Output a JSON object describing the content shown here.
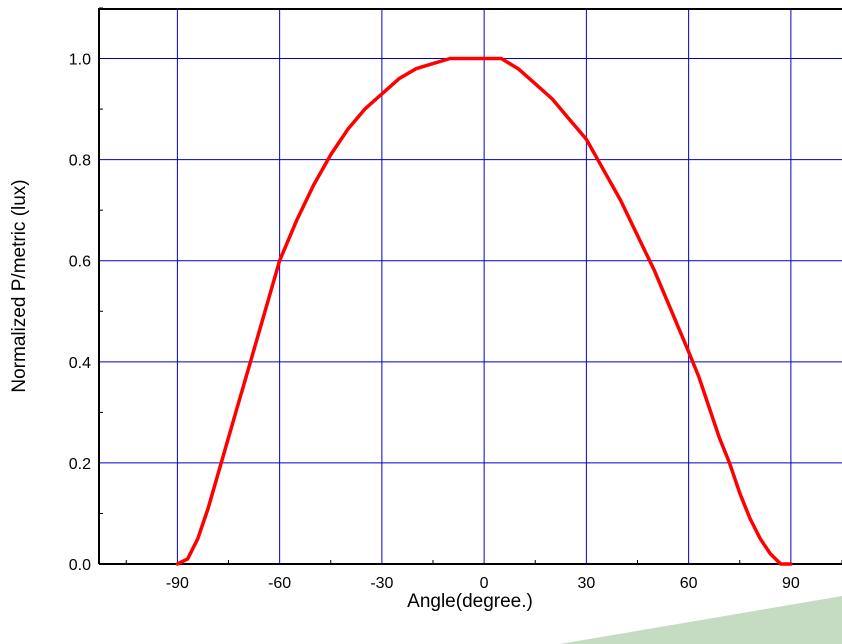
{
  "chart_data": {
    "type": "line",
    "title": "",
    "xlabel": "Angle(degree.)",
    "ylabel": "Normalized P/metric (lux)",
    "xlim": [
      -113,
      105
    ],
    "ylim": [
      0,
      1.1
    ],
    "xticks": [
      -90,
      -60,
      -30,
      0,
      30,
      60,
      90
    ],
    "yticks": [
      0.0,
      0.2,
      0.4,
      0.6,
      0.8,
      1.0
    ],
    "xtick_labels": [
      "-90",
      "-60",
      "-30",
      "0",
      "30",
      "60",
      "90"
    ],
    "ytick_labels": [
      "0.0",
      "0.2",
      "0.4",
      "0.6",
      "0.8",
      "1.0"
    ],
    "grid": true,
    "colors": {
      "grid": "#0000cc",
      "series": "#ff0000",
      "axis": "#000000",
      "accent_shape": "#c5dcc2"
    },
    "series": [
      {
        "x": [
          -90,
          -87,
          -84,
          -81,
          -78,
          -75,
          -72,
          -69,
          -66,
          -63,
          -60,
          -55,
          -50,
          -45,
          -40,
          -35,
          -30,
          -25,
          -20,
          -15,
          -10,
          -5,
          0,
          3,
          5,
          10,
          15,
          20,
          25,
          30,
          35,
          40,
          45,
          50,
          55,
          60,
          63,
          66,
          69,
          72,
          75,
          78,
          81,
          84,
          87,
          90
        ],
        "y": [
          0.0,
          0.01,
          0.05,
          0.11,
          0.18,
          0.25,
          0.32,
          0.39,
          0.46,
          0.53,
          0.6,
          0.68,
          0.75,
          0.81,
          0.86,
          0.9,
          0.93,
          0.96,
          0.98,
          0.99,
          1.0,
          1.0,
          1.0,
          1.0,
          1.0,
          0.98,
          0.95,
          0.92,
          0.88,
          0.84,
          0.78,
          0.72,
          0.65,
          0.58,
          0.5,
          0.42,
          0.37,
          0.31,
          0.25,
          0.2,
          0.14,
          0.09,
          0.05,
          0.02,
          0.0,
          0.0
        ]
      }
    ]
  }
}
